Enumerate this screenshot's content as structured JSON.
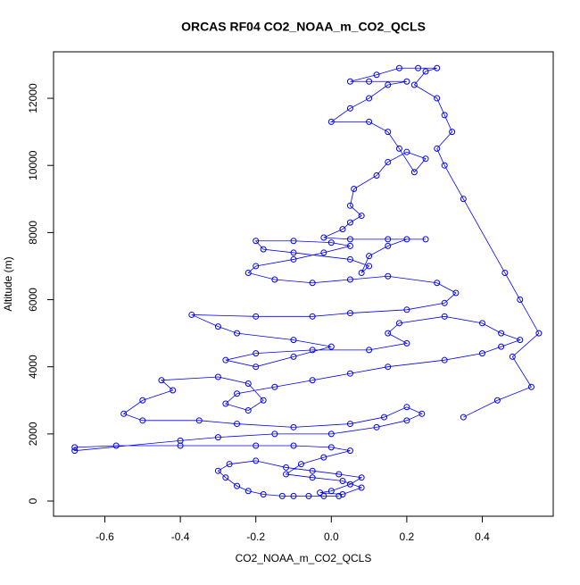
{
  "chart_data": {
    "type": "line",
    "title": "ORCAS RF04 CO2_NOAA_m_CO2_QCLS",
    "xlabel": "CO2_NOAA_m_CO2_QCLS",
    "ylabel": "Altitude (m)",
    "xlim": [
      -0.736,
      0.588
    ],
    "ylim": [
      -452,
      13385
    ],
    "xticks": [
      -0.6,
      -0.4,
      -0.2,
      {
        "value": 0,
        "label": "0.0"
      },
      0.2,
      0.4
    ],
    "yticks": [
      0,
      2000,
      4000,
      6000,
      8000,
      10000,
      12000
    ],
    "markers": true,
    "series": [
      {
        "color": "#0000ff",
        "x": [
          0.02,
          -0.02,
          -0.06,
          -0.1,
          -0.13,
          -0.18,
          -0.22,
          -0.25,
          -0.28,
          -0.3,
          -0.27,
          -0.2,
          -0.12,
          -0.05,
          0.02,
          0.08,
          0.05,
          0.0,
          -0.03,
          0.03,
          0.08,
          0.03,
          -0.05,
          -0.12,
          -0.08,
          -0.02,
          0.05,
          0.0,
          -0.1,
          -0.2,
          -0.4,
          -0.57,
          -0.68,
          -0.68,
          -0.4,
          -0.3,
          -0.15,
          0.0,
          0.12,
          0.2,
          0.24,
          0.2,
          0.14,
          0.05,
          -0.1,
          -0.25,
          -0.35,
          -0.5,
          -0.55,
          -0.5,
          -0.42,
          -0.45,
          -0.3,
          -0.22,
          -0.18,
          -0.22,
          -0.28,
          -0.25,
          -0.15,
          -0.05,
          0.05,
          0.15,
          0.3,
          0.4,
          0.45,
          0.5,
          0.45,
          0.4,
          0.3,
          0.18,
          0.15,
          0.2,
          0.1,
          -0.05,
          -0.2,
          -0.28,
          -0.2,
          -0.1,
          0.0,
          -0.1,
          -0.25,
          -0.3,
          -0.37,
          -0.2,
          -0.05,
          0.05,
          0.2,
          0.3,
          0.33,
          0.28,
          0.15,
          0.05,
          -0.05,
          -0.15,
          -0.22,
          -0.2,
          -0.1,
          -0.02,
          0.05,
          0.0,
          -0.1,
          -0.2,
          -0.18,
          -0.1,
          0.05,
          0.1,
          0.08,
          0.1,
          0.15,
          0.2,
          0.25,
          0.15,
          0.05,
          -0.02,
          0.03,
          0.05,
          0.08,
          0.05,
          0.06,
          0.12,
          0.15,
          0.2,
          0.25,
          0.22,
          0.18,
          0.15,
          0.1,
          0.0,
          0.05,
          0.1,
          0.15,
          0.2,
          0.1,
          0.05,
          0.12,
          0.18,
          0.23,
          0.28,
          0.25,
          0.22,
          0.28,
          0.3,
          0.32,
          0.28,
          0.3,
          0.35,
          0.46,
          0.5,
          0.55,
          0.48,
          0.53,
          0.44,
          0.35
        ],
        "y": [
          150,
          150,
          150,
          150,
          150,
          200,
          300,
          450,
          700,
          900,
          1100,
          1200,
          1000,
          900,
          800,
          700,
          500,
          300,
          250,
          200,
          400,
          600,
          700,
          800,
          1100,
          1300,
          1500,
          1600,
          1650,
          1650,
          1650,
          1650,
          1600,
          1500,
          1800,
          1900,
          2000,
          2000,
          2200,
          2400,
          2600,
          2800,
          2500,
          2300,
          2200,
          2300,
          2400,
          2400,
          2600,
          3000,
          3300,
          3600,
          3700,
          3500,
          3000,
          2700,
          2900,
          3200,
          3400,
          3600,
          3800,
          4000,
          4200,
          4400,
          4600,
          4800,
          5000,
          5300,
          5500,
          5300,
          5000,
          4700,
          4500,
          4500,
          4400,
          4200,
          4000,
          4300,
          4600,
          4800,
          5000,
          5200,
          5550,
          5500,
          5500,
          5600,
          5700,
          5900,
          6200,
          6500,
          6700,
          6600,
          6500,
          6600,
          6800,
          7000,
          7200,
          7400,
          7600,
          7700,
          7750,
          7750,
          7500,
          7400,
          7200,
          7000,
          6800,
          7300,
          7600,
          7800,
          7800,
          7800,
          7800,
          7850,
          8100,
          8300,
          8500,
          8800,
          9300,
          9700,
          10100,
          10400,
          10200,
          9800,
          10500,
          11000,
          11300,
          11300,
          11700,
          12000,
          12400,
          12500,
          12500,
          12500,
          12700,
          12900,
          12900,
          12900,
          12800,
          12400,
          12000,
          11500,
          11000,
          10500,
          10000,
          9000,
          6800,
          6000,
          5000,
          4300,
          3400,
          3000,
          2500
        ]
      }
    ]
  }
}
